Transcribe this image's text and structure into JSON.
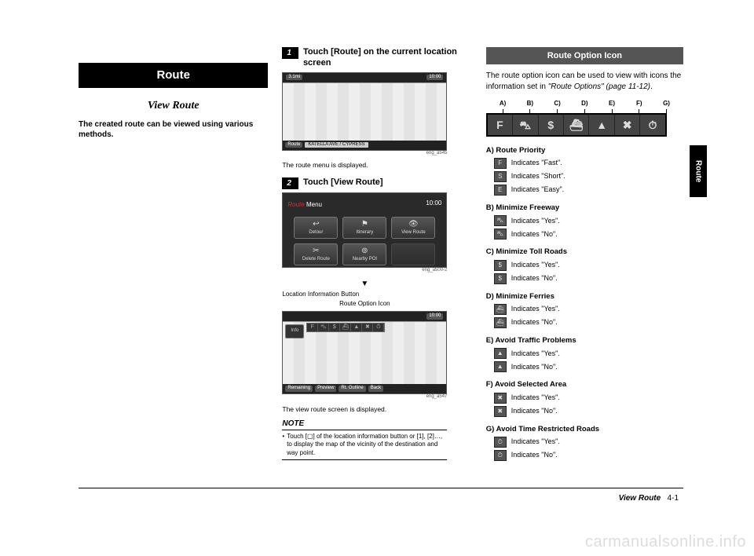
{
  "sideTab": "Route",
  "col1": {
    "header": "Route",
    "title": "View Route",
    "intro": "The created route can be viewed using various methods."
  },
  "col2": {
    "step1_num": "1",
    "step1_text": "Touch [Route] on the current location screen",
    "ss1": {
      "tl": "3.1mi",
      "tr": "10:00",
      "bot_route": "Route",
      "bot_street": "KATELLA AVE / CYPRESS",
      "caption": "eng_a545"
    },
    "after_ss1": "The route menu is displayed.",
    "step2_num": "2",
    "step2_text": "Touch [View Route]",
    "ss2": {
      "title_a": "Route",
      "title_b": " Menu",
      "clock": "10:00",
      "btn1": "Detour",
      "btn2": "Itinerary",
      "btn3": "View Route",
      "btn4": "Delete Route",
      "btn5": "Nearby POI",
      "caption": "eng_a500-2"
    },
    "arrow": "▼",
    "loc_label": "Location Information Button",
    "roi_label": "Route Option Icon",
    "ss3": {
      "info": "Info",
      "mi": "105 MI",
      "clock": "10:00",
      "b1": "Remaining",
      "b2": "Preview",
      "b3": "Rt. Outline",
      "b4": "Back",
      "caption": "eng_a547"
    },
    "after_ss3": "The view route screen is displayed.",
    "note_label": "NOTE",
    "note_body": "Touch [▢] of the location information button or [1], [2]…, to display the map of the vicinity of the destination and way point."
  },
  "col3": {
    "subheader": "Route Option Icon",
    "intro_a": "The route option icon can be used to view with icons the information set in ",
    "intro_b": "\"Route Options\" (page 11-12)",
    "intro_c": ".",
    "letters": [
      "A)",
      "B)",
      "C)",
      "D)",
      "E)",
      "F)",
      "G)"
    ],
    "bar_glyphs": [
      "F",
      "⛍",
      "$",
      "⛴",
      "▲",
      "✖",
      "⏱"
    ],
    "groups": [
      {
        "t": "A) Route Priority",
        "rows": [
          {
            "g": "F",
            "x": "Indicates \"Fast\"."
          },
          {
            "g": "S",
            "x": "Indicates \"Short\"."
          },
          {
            "g": "E",
            "x": "Indicates \"Easy\"."
          }
        ]
      },
      {
        "t": "B) Minimize Freeway",
        "rows": [
          {
            "g": "⛍",
            "x": "Indicates \"Yes\"."
          },
          {
            "g": "⛍",
            "x": "Indicates \"No\"."
          }
        ]
      },
      {
        "t": "C) Minimize Toll Roads",
        "rows": [
          {
            "g": "$",
            "x": "Indicates \"Yes\"."
          },
          {
            "g": "$",
            "x": "Indicates \"No\"."
          }
        ]
      },
      {
        "t": "D) Minimize Ferries",
        "rows": [
          {
            "g": "⛴",
            "x": "Indicates \"Yes\"."
          },
          {
            "g": "⛴",
            "x": "Indicates \"No\"."
          }
        ]
      },
      {
        "t": "E) Avoid Traffic Problems",
        "rows": [
          {
            "g": "▲",
            "x": "Indicates \"Yes\"."
          },
          {
            "g": "▲",
            "x": "Indicates \"No\"."
          }
        ]
      },
      {
        "t": "F) Avoid Selected Area",
        "rows": [
          {
            "g": "✖",
            "x": "Indicates \"Yes\"."
          },
          {
            "g": "✖",
            "x": "Indicates \"No\"."
          }
        ]
      },
      {
        "t": "G) Avoid Time Restricted Roads",
        "rows": [
          {
            "g": "⏱",
            "x": "Indicates \"Yes\"."
          },
          {
            "g": "⏱",
            "x": "Indicates \"No\"."
          }
        ]
      }
    ]
  },
  "footer": {
    "title": "View Route",
    "page": "4-1"
  },
  "watermark": "carmanualsonline.info"
}
